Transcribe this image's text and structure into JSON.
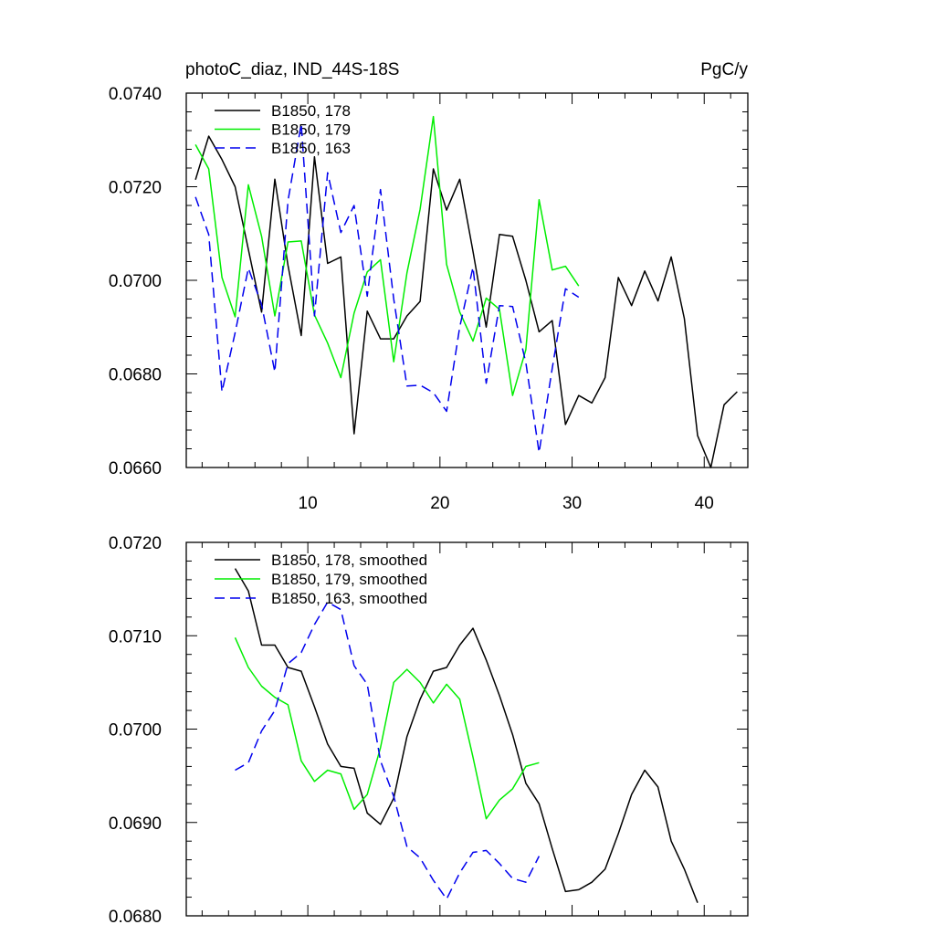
{
  "chart_data": [
    {
      "type": "line",
      "title": "photoC_diaz, IND_44S-18S",
      "units": "PgC/y",
      "xlim": [
        0.8,
        43.3
      ],
      "ylim": [
        0.066,
        0.074
      ],
      "x_ticks": [
        10,
        20,
        30,
        40
      ],
      "x_tick_labels": [
        "10",
        "20",
        "30",
        "40"
      ],
      "y_ticks": [
        0.066,
        0.068,
        0.07,
        0.072,
        0.074
      ],
      "y_tick_labels": [
        "0.0660",
        "0.0680",
        "0.0700",
        "0.0720",
        "0.0740"
      ],
      "legend_position": "top-left",
      "series": [
        {
          "name": "B1850, 178",
          "color": "#000000",
          "dash": "solid",
          "x_start": 1.5,
          "values": [
            0.07215,
            0.07308,
            0.07258,
            0.072,
            0.07066,
            0.06932,
            0.07216,
            0.07032,
            0.06882,
            0.07264,
            0.07036,
            0.0705,
            0.06672,
            0.06934,
            0.06875,
            0.06875,
            0.06924,
            0.06955,
            0.07238,
            0.0715,
            0.07216,
            0.07062,
            0.069,
            0.07098,
            0.07094,
            0.07,
            0.0689,
            0.06914,
            0.06692,
            0.06754,
            0.06738,
            0.06792,
            0.07006,
            0.06946,
            0.0702,
            0.06956,
            0.0705,
            0.06918,
            0.06668,
            0.066,
            0.06734,
            0.06762
          ]
        },
        {
          "name": "B1850, 179",
          "color": "#00ee00",
          "dash": "solid",
          "x_start": 1.5,
          "values": [
            0.0729,
            0.07238,
            0.07006,
            0.06922,
            0.07204,
            0.07094,
            0.06924,
            0.07082,
            0.07084,
            0.06926,
            0.06866,
            0.06792,
            0.0693,
            0.07018,
            0.07044,
            0.06826,
            0.07016,
            0.07152,
            0.0735,
            0.07034,
            0.06932,
            0.0687,
            0.06962,
            0.06938,
            0.06754,
            0.06852,
            0.07172,
            0.07022,
            0.0703,
            0.06988
          ]
        },
        {
          "name": "B1850, 163",
          "color": "#0000ee",
          "dash": "dashed",
          "x_start": 1.5,
          "values": [
            0.07178,
            0.07098,
            0.06762,
            0.06888,
            0.07026,
            0.06948,
            0.06804,
            0.0717,
            0.07334,
            0.06924,
            0.0723,
            0.07102,
            0.0716,
            0.06966,
            0.07194,
            0.0696,
            0.06774,
            0.06776,
            0.0676,
            0.0672,
            0.069,
            0.07028,
            0.0678,
            0.06946,
            0.06944,
            0.06824,
            0.06632,
            0.06812,
            0.06982,
            0.06964
          ]
        }
      ]
    },
    {
      "type": "line",
      "xlim": [
        0.8,
        43.3
      ],
      "ylim": [
        0.068,
        0.072
      ],
      "x_ticks": [
        10,
        20,
        30,
        40
      ],
      "y_ticks": [
        0.068,
        0.069,
        0.07,
        0.071,
        0.072
      ],
      "y_tick_labels": [
        "0.0680",
        "0.0690",
        "0.0700",
        "0.0710",
        "0.0720"
      ],
      "legend_position": "top-left",
      "series": [
        {
          "name": "B1850, 178, smoothed",
          "color": "#000000",
          "dash": "solid",
          "x_start": 4.5,
          "values": [
            0.07172,
            0.07148,
            0.0709,
            0.0709,
            0.07066,
            0.07062,
            0.07024,
            0.06984,
            0.0696,
            0.06958,
            0.0691,
            0.06898,
            0.06926,
            0.06992,
            0.07032,
            0.07062,
            0.07066,
            0.0709,
            0.07108,
            0.07074,
            0.07036,
            0.06994,
            0.06942,
            0.0692,
            0.06872,
            0.06826,
            0.06828,
            0.06836,
            0.0685,
            0.06888,
            0.0693,
            0.06956,
            0.06938,
            0.0688,
            0.0685,
            0.06814
          ]
        },
        {
          "name": "B1850, 179, smoothed",
          "color": "#00ee00",
          "dash": "solid",
          "x_start": 4.5,
          "values": [
            0.07098,
            0.07066,
            0.07046,
            0.07034,
            0.07026,
            0.06966,
            0.06944,
            0.06956,
            0.06952,
            0.06914,
            0.0693,
            0.0698,
            0.0705,
            0.07064,
            0.0705,
            0.07028,
            0.07048,
            0.07032,
            0.0697,
            0.06904,
            0.06924,
            0.06936,
            0.0696,
            0.06964
          ]
        },
        {
          "name": "B1850, 163, smoothed",
          "color": "#0000ee",
          "dash": "dashed",
          "x_start": 4.5,
          "values": [
            0.06956,
            0.06964,
            0.06998,
            0.0702,
            0.0707,
            0.07082,
            0.07112,
            0.07136,
            0.07128,
            0.07068,
            0.07048,
            0.06966,
            0.06928,
            0.06874,
            0.06862,
            0.06838,
            0.06818,
            0.06846,
            0.06868,
            0.0687,
            0.06856,
            0.0684,
            0.06836,
            0.06864
          ]
        }
      ]
    }
  ]
}
